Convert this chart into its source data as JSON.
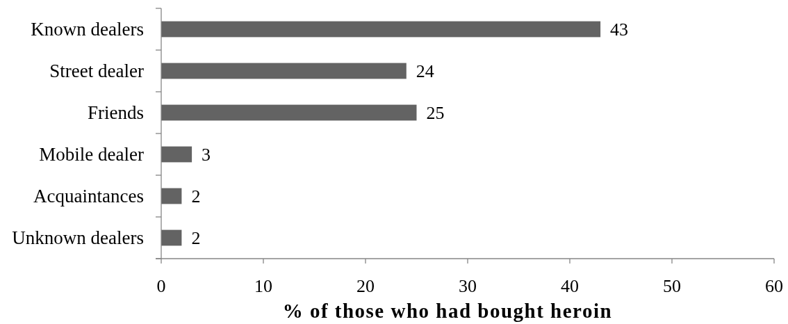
{
  "chart_data": {
    "type": "bar",
    "orientation": "horizontal",
    "xlabel": "% of those who had bought heroin",
    "categories": [
      "Known dealers",
      "Street dealer",
      "Friends",
      "Mobile dealer",
      "Acquaintances",
      "Unknown dealers"
    ],
    "values": [
      43,
      24,
      25,
      3,
      2,
      2
    ],
    "color": "#636363",
    "xlim": [
      0,
      60
    ],
    "xticks": [
      0,
      10,
      20,
      30,
      40,
      50,
      60
    ],
    "data_labels": true,
    "grid": false
  }
}
